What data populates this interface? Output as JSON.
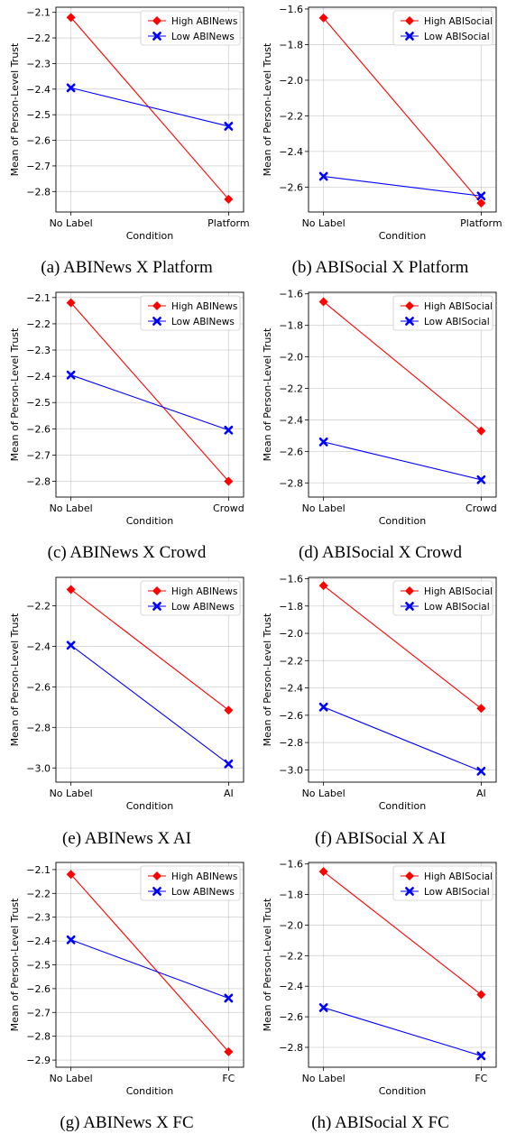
{
  "charts": [
    {
      "caption": "(a) ABINews X Platform",
      "chart_data": {
        "type": "line",
        "categories": [
          "No Label",
          "Platform"
        ],
        "xlabel": "Condition",
        "ylabel": "Mean of Person-Level Trust",
        "ylim": [
          -2.88,
          -2.08
        ],
        "yticks": [
          -2.1,
          -2.2,
          -2.3,
          -2.4,
          -2.5,
          -2.6,
          -2.7,
          -2.8
        ],
        "ytick_labels": [
          "−2.1",
          "−2.2",
          "−2.3",
          "−2.4",
          "−2.5",
          "−2.6",
          "−2.7",
          "−2.8"
        ],
        "grid": true,
        "legend_position": "top-right",
        "series": [
          {
            "name": "High ABINews",
            "values": [
              -2.12,
              -2.83
            ],
            "color": "#ff0000",
            "marker": "diamond"
          },
          {
            "name": "Low ABINews",
            "values": [
              -2.395,
              -2.545
            ],
            "color": "#0000ff",
            "marker": "x"
          }
        ]
      }
    },
    {
      "caption": "(b) ABISocial X Platform",
      "chart_data": {
        "type": "line",
        "categories": [
          "No Label",
          "Platform"
        ],
        "xlabel": "Condition",
        "ylabel": "Mean of Person-Level Trust",
        "ylim": [
          -2.74,
          -1.59
        ],
        "yticks": [
          -1.6,
          -1.8,
          -2.0,
          -2.2,
          -2.4,
          -2.6
        ],
        "ytick_labels": [
          "−1.6",
          "−1.8",
          "−2.0",
          "−2.2",
          "−2.4",
          "−2.6"
        ],
        "grid": true,
        "legend_position": "top-right",
        "series": [
          {
            "name": "High ABISocial",
            "values": [
              -1.65,
              -2.69
            ],
            "color": "#ff0000",
            "marker": "diamond"
          },
          {
            "name": "Low ABISocial",
            "values": [
              -2.54,
              -2.65
            ],
            "color": "#0000ff",
            "marker": "x"
          }
        ]
      }
    },
    {
      "caption": "(c) ABINews X Crowd",
      "chart_data": {
        "type": "line",
        "categories": [
          "No Label",
          "Crowd"
        ],
        "xlabel": "Condition",
        "ylabel": "Mean of Person-Level Trust",
        "ylim": [
          -2.86,
          -2.08
        ],
        "yticks": [
          -2.1,
          -2.2,
          -2.3,
          -2.4,
          -2.5,
          -2.6,
          -2.7,
          -2.8
        ],
        "ytick_labels": [
          "−2.1",
          "−2.2",
          "−2.3",
          "−2.4",
          "−2.5",
          "−2.6",
          "−2.7",
          "−2.8"
        ],
        "grid": true,
        "legend_position": "top-right",
        "series": [
          {
            "name": "High ABINews",
            "values": [
              -2.12,
              -2.8
            ],
            "color": "#ff0000",
            "marker": "diamond"
          },
          {
            "name": "Low ABINews",
            "values": [
              -2.395,
              -2.605
            ],
            "color": "#0000ff",
            "marker": "x"
          }
        ]
      }
    },
    {
      "caption": "(d) ABISocial X Crowd",
      "chart_data": {
        "type": "line",
        "categories": [
          "No Label",
          "Crowd"
        ],
        "xlabel": "Condition",
        "ylabel": "Mean of Person-Level Trust",
        "ylim": [
          -2.89,
          -1.59
        ],
        "yticks": [
          -1.6,
          -1.8,
          -2.0,
          -2.2,
          -2.4,
          -2.6,
          -2.8
        ],
        "ytick_labels": [
          "−1.6",
          "−1.8",
          "−2.0",
          "−2.2",
          "−2.4",
          "−2.6",
          "−2.8"
        ],
        "grid": true,
        "legend_position": "top-right",
        "series": [
          {
            "name": "High ABISocial",
            "values": [
              -1.65,
              -2.47
            ],
            "color": "#ff0000",
            "marker": "diamond"
          },
          {
            "name": "Low ABISocial",
            "values": [
              -2.54,
              -2.78
            ],
            "color": "#0000ff",
            "marker": "x"
          }
        ]
      }
    },
    {
      "caption": "(e) ABINews X AI",
      "chart_data": {
        "type": "line",
        "categories": [
          "No Label",
          "AI"
        ],
        "xlabel": "Condition",
        "ylabel": "Mean of Person-Level Trust",
        "ylim": [
          -3.07,
          -2.06
        ],
        "yticks": [
          -2.2,
          -2.4,
          -2.6,
          -2.8,
          -3.0
        ],
        "ytick_labels": [
          "−2.2",
          "−2.4",
          "−2.6",
          "−2.8",
          "−3.0"
        ],
        "grid": true,
        "legend_position": "top-right",
        "series": [
          {
            "name": "High ABINews",
            "values": [
              -2.12,
              -2.715
            ],
            "color": "#ff0000",
            "marker": "diamond"
          },
          {
            "name": "Low ABINews",
            "values": [
              -2.395,
              -2.98
            ],
            "color": "#0000ff",
            "marker": "x"
          }
        ]
      }
    },
    {
      "caption": "(f) ABISocial X AI",
      "chart_data": {
        "type": "line",
        "categories": [
          "No Label",
          "AI"
        ],
        "xlabel": "Condition",
        "ylabel": "Mean of Person-Level Trust",
        "ylim": [
          -3.09,
          -1.59
        ],
        "yticks": [
          -1.6,
          -1.8,
          -2.0,
          -2.2,
          -2.4,
          -2.6,
          -2.8,
          -3.0
        ],
        "ytick_labels": [
          "−1.6",
          "−1.8",
          "−2.0",
          "−2.2",
          "−2.4",
          "−2.6",
          "−2.8",
          "−3.0"
        ],
        "grid": true,
        "legend_position": "top-right",
        "series": [
          {
            "name": "High ABISocial",
            "values": [
              -1.65,
              -2.55
            ],
            "color": "#ff0000",
            "marker": "diamond"
          },
          {
            "name": "Low ABISocial",
            "values": [
              -2.54,
              -3.01
            ],
            "color": "#0000ff",
            "marker": "x"
          }
        ]
      }
    },
    {
      "caption": "(g) ABINews X FC",
      "chart_data": {
        "type": "line",
        "categories": [
          "No Label",
          "FC"
        ],
        "xlabel": "Condition",
        "ylabel": "Mean of Person-Level Trust",
        "ylim": [
          -2.93,
          -2.07
        ],
        "yticks": [
          -2.1,
          -2.2,
          -2.3,
          -2.4,
          -2.5,
          -2.6,
          -2.7,
          -2.8,
          -2.9
        ],
        "ytick_labels": [
          "−2.1",
          "−2.2",
          "−2.3",
          "−2.4",
          "−2.5",
          "−2.6",
          "−2.7",
          "−2.8",
          "−2.9"
        ],
        "grid": true,
        "legend_position": "top-right",
        "series": [
          {
            "name": "High ABINews",
            "values": [
              -2.12,
              -2.865
            ],
            "color": "#ff0000",
            "marker": "diamond"
          },
          {
            "name": "Low ABINews",
            "values": [
              -2.395,
              -2.64
            ],
            "color": "#0000ff",
            "marker": "x"
          }
        ]
      }
    },
    {
      "caption": "(h) ABISocial X FC",
      "chart_data": {
        "type": "line",
        "categories": [
          "No Label",
          "FC"
        ],
        "xlabel": "Condition",
        "ylabel": "Mean of Person-Level Trust",
        "ylim": [
          -2.93,
          -1.59
        ],
        "yticks": [
          -1.6,
          -1.8,
          -2.0,
          -2.2,
          -2.4,
          -2.6,
          -2.8
        ],
        "ytick_labels": [
          "−1.6",
          "−1.8",
          "−2.0",
          "−2.2",
          "−2.4",
          "−2.6",
          "−2.8"
        ],
        "grid": true,
        "legend_position": "top-right",
        "series": [
          {
            "name": "High ABISocial",
            "values": [
              -1.65,
              -2.455
            ],
            "color": "#ff0000",
            "marker": "diamond"
          },
          {
            "name": "Low ABISocial",
            "values": [
              -2.54,
              -2.855
            ],
            "color": "#0000ff",
            "marker": "x"
          }
        ]
      }
    }
  ]
}
